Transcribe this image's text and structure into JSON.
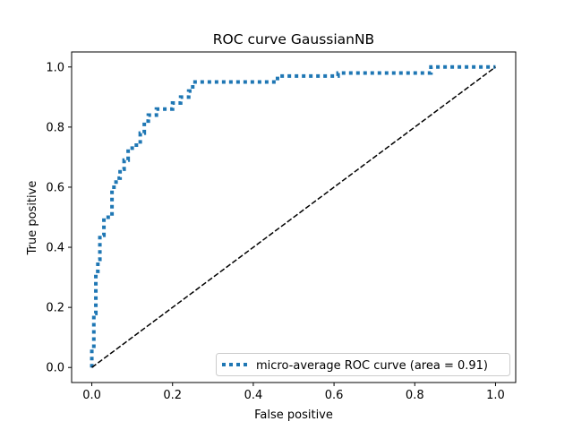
{
  "chart_data": {
    "type": "line",
    "title": "ROC curve GaussianNB",
    "xlabel": "False positive",
    "ylabel": "True positive",
    "xlim": [
      -0.05,
      1.05
    ],
    "ylim": [
      -0.05,
      1.05
    ],
    "xticks": [
      0.0,
      0.2,
      0.4,
      0.6,
      0.8,
      1.0
    ],
    "yticks": [
      0.0,
      0.2,
      0.4,
      0.6,
      0.8,
      1.0
    ],
    "xtick_labels": [
      "0.0",
      "0.2",
      "0.4",
      "0.6",
      "0.8",
      "1.0"
    ],
    "ytick_labels": [
      "0.0",
      "0.2",
      "0.4",
      "0.6",
      "0.8",
      "1.0"
    ],
    "grid": false,
    "legend_position": "lower right",
    "series": [
      {
        "name": "micro-average ROC curve (area = 0.91)",
        "style": "dotted",
        "color": "#1f77b4",
        "x": [
          0.0,
          0.0,
          0.005,
          0.005,
          0.01,
          0.01,
          0.015,
          0.015,
          0.02,
          0.02,
          0.03,
          0.03,
          0.05,
          0.05,
          0.06,
          0.06,
          0.07,
          0.07,
          0.08,
          0.08,
          0.09,
          0.09,
          0.1,
          0.1,
          0.12,
          0.12,
          0.13,
          0.13,
          0.14,
          0.14,
          0.16,
          0.16,
          0.2,
          0.2,
          0.22,
          0.22,
          0.24,
          0.24,
          0.25,
          0.25,
          0.46,
          0.46,
          0.61,
          0.61,
          0.84,
          0.84,
          1.0
        ],
        "y": [
          0.0,
          0.06,
          0.06,
          0.18,
          0.18,
          0.32,
          0.32,
          0.36,
          0.36,
          0.44,
          0.44,
          0.5,
          0.5,
          0.6,
          0.6,
          0.63,
          0.63,
          0.66,
          0.66,
          0.69,
          0.69,
          0.72,
          0.72,
          0.74,
          0.74,
          0.78,
          0.78,
          0.82,
          0.82,
          0.84,
          0.84,
          0.86,
          0.86,
          0.88,
          0.88,
          0.9,
          0.9,
          0.92,
          0.92,
          0.95,
          0.95,
          0.97,
          0.97,
          0.98,
          0.98,
          1.0,
          1.0
        ]
      },
      {
        "name": "",
        "style": "dashed",
        "color": "#000000",
        "x": [
          0.0,
          1.0
        ],
        "y": [
          0.0,
          1.0
        ]
      }
    ]
  }
}
